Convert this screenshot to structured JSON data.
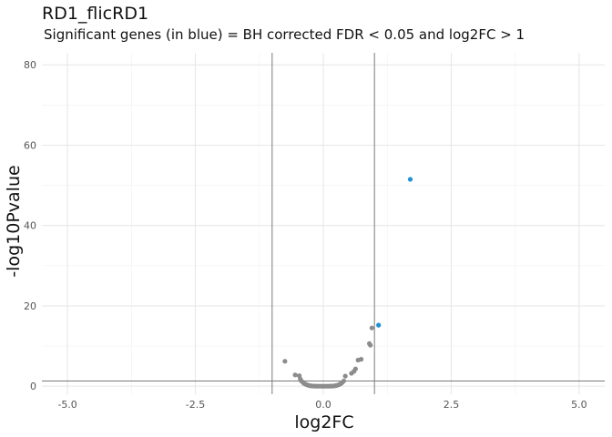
{
  "chart_data": {
    "type": "scatter",
    "title": "RD1_flicRD1",
    "subtitle": "Significant genes (in blue) = BH corrected FDR < 0.05 and log2FC > 1",
    "xlabel": "log2FC",
    "ylabel": "-log10Pvalue",
    "xlim": [
      -5.5,
      5.5
    ],
    "ylim": [
      -2,
      83
    ],
    "x_ticks": [
      -5.0,
      -2.5,
      0.0,
      2.5,
      5.0
    ],
    "x_tick_labels": [
      "-5.0",
      "-2.5",
      "0.0",
      "2.5",
      "5.0"
    ],
    "y_ticks": [
      0,
      20,
      40,
      60,
      80
    ],
    "y_tick_labels": [
      "0",
      "20",
      "40",
      "60",
      "80"
    ],
    "vlines": [
      -1,
      1
    ],
    "hline": 1.3,
    "grid": true,
    "colors": {
      "significant": "#1f8fd6",
      "non_significant": "#8c8c8c",
      "reference_lines": "#7a7a7a"
    },
    "series": [
      {
        "values": [
          {
            "x": -0.75,
            "y": 6.2
          },
          {
            "x": -0.55,
            "y": 2.8
          },
          {
            "x": -0.47,
            "y": 2.6
          },
          {
            "x": -0.45,
            "y": 1.8
          },
          {
            "x": -0.43,
            "y": 1.3
          },
          {
            "x": -0.4,
            "y": 1.0
          },
          {
            "x": -0.38,
            "y": 0.7
          },
          {
            "x": -0.35,
            "y": 0.5
          },
          {
            "x": -0.32,
            "y": 0.35
          },
          {
            "x": -0.29,
            "y": 0.2
          },
          {
            "x": -0.26,
            "y": 0.12
          },
          {
            "x": -0.23,
            "y": 0.06
          },
          {
            "x": -0.2,
            "y": 0.03
          },
          {
            "x": -0.17,
            "y": 0.02
          },
          {
            "x": -0.14,
            "y": 0.01
          },
          {
            "x": -0.11,
            "y": 0.0
          },
          {
            "x": -0.08,
            "y": 0.0
          },
          {
            "x": -0.05,
            "y": 0.0
          },
          {
            "x": -0.02,
            "y": 0.0
          },
          {
            "x": 0.01,
            "y": 0.0
          },
          {
            "x": 0.04,
            "y": 0.0
          },
          {
            "x": 0.07,
            "y": 0.0
          },
          {
            "x": 0.1,
            "y": 0.0
          },
          {
            "x": 0.13,
            "y": 0.01
          },
          {
            "x": 0.16,
            "y": 0.02
          },
          {
            "x": 0.19,
            "y": 0.04
          },
          {
            "x": 0.22,
            "y": 0.08
          },
          {
            "x": 0.25,
            "y": 0.15
          },
          {
            "x": 0.28,
            "y": 0.25
          },
          {
            "x": 0.31,
            "y": 0.4
          },
          {
            "x": 0.34,
            "y": 0.6
          },
          {
            "x": 0.37,
            "y": 0.9
          },
          {
            "x": 0.4,
            "y": 1.3
          },
          {
            "x": 0.43,
            "y": 2.5
          },
          {
            "x": 0.55,
            "y": 3.2
          },
          {
            "x": 0.6,
            "y": 3.7
          },
          {
            "x": 0.63,
            "y": 4.3
          },
          {
            "x": 0.68,
            "y": 6.5
          },
          {
            "x": 0.74,
            "y": 6.7
          },
          {
            "x": 0.9,
            "y": 10.6
          },
          {
            "x": 0.92,
            "y": 10.2
          },
          {
            "x": 0.95,
            "y": 14.5
          }
        ]
      },
      {
        "values": [
          {
            "x": 1.08,
            "y": 15.2
          },
          {
            "x": 1.7,
            "y": 51.5
          }
        ]
      }
    ]
  }
}
